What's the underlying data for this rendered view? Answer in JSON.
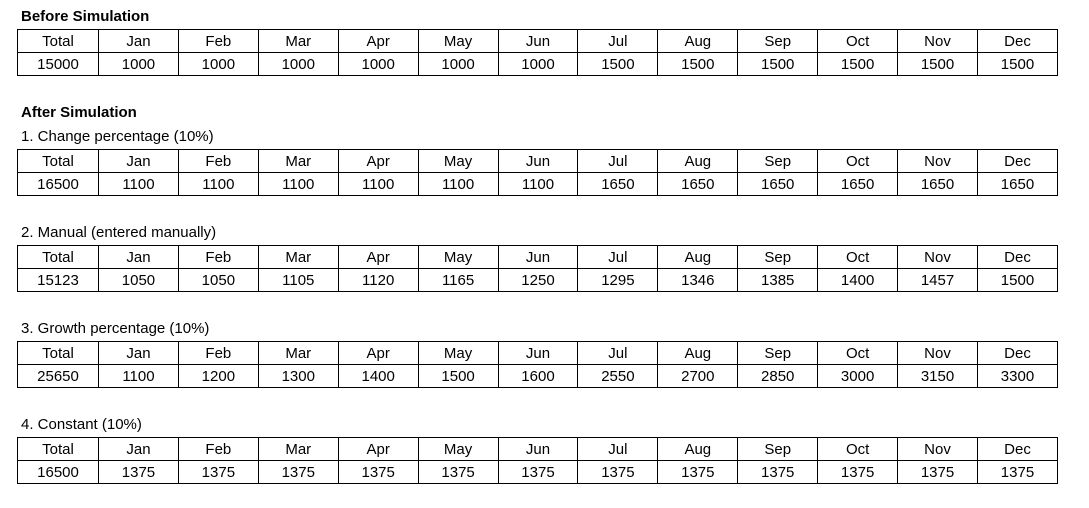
{
  "before": {
    "title": "Before Simulation",
    "headers": [
      "Total",
      "Jan",
      "Feb",
      "Mar",
      "Apr",
      "May",
      "Jun",
      "Jul",
      "Aug",
      "Sep",
      "Oct",
      "Nov",
      "Dec"
    ],
    "values": [
      "15000",
      "1000",
      "1000",
      "1000",
      "1000",
      "1000",
      "1000",
      "1500",
      "1500",
      "1500",
      "1500",
      "1500",
      "1500"
    ]
  },
  "after": {
    "title": "After Simulation",
    "sections": [
      {
        "caption": "1. Change percentage (10%)",
        "headers": [
          "Total",
          "Jan",
          "Feb",
          "Mar",
          "Apr",
          "May",
          "Jun",
          "Jul",
          "Aug",
          "Sep",
          "Oct",
          "Nov",
          "Dec"
        ],
        "values": [
          "16500",
          "1100",
          "1100",
          "1100",
          "1100",
          "1100",
          "1100",
          "1650",
          "1650",
          "1650",
          "1650",
          "1650",
          "1650"
        ]
      },
      {
        "caption": "2. Manual (entered manually)",
        "headers": [
          "Total",
          "Jan",
          "Feb",
          "Mar",
          "Apr",
          "May",
          "Jun",
          "Jul",
          "Aug",
          "Sep",
          "Oct",
          "Nov",
          "Dec"
        ],
        "values": [
          "15123",
          "1050",
          "1050",
          "1105",
          "1120",
          "1165",
          "1250",
          "1295",
          "1346",
          "1385",
          "1400",
          "1457",
          "1500"
        ]
      },
      {
        "caption": "3. Growth percentage (10%)",
        "headers": [
          "Total",
          "Jan",
          "Feb",
          "Mar",
          "Apr",
          "May",
          "Jun",
          "Jul",
          "Aug",
          "Sep",
          "Oct",
          "Nov",
          "Dec"
        ],
        "values": [
          "25650",
          "1100",
          "1200",
          "1300",
          "1400",
          "1500",
          "1600",
          "2550",
          "2700",
          "2850",
          "3000",
          "3150",
          "3300"
        ]
      },
      {
        "caption": "4. Constant (10%)",
        "headers": [
          "Total",
          "Jan",
          "Feb",
          "Mar",
          "Apr",
          "May",
          "Jun",
          "Jul",
          "Aug",
          "Sep",
          "Oct",
          "Nov",
          "Dec"
        ],
        "values": [
          "16500",
          "1375",
          "1375",
          "1375",
          "1375",
          "1375",
          "1375",
          "1375",
          "1375",
          "1375",
          "1375",
          "1375",
          "1375"
        ]
      }
    ]
  }
}
